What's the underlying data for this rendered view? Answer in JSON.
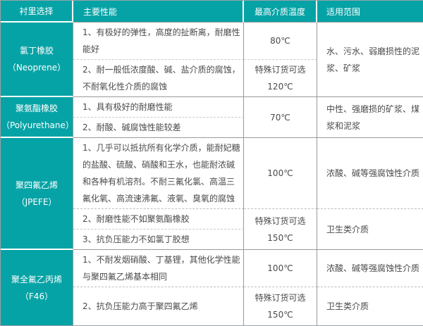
{
  "colors": {
    "teal": "#06a3a6",
    "border_gray": "#999999",
    "dash_gray": "#c9c9c9",
    "body_text": "#4a4a4a"
  },
  "table": {
    "headers": {
      "lining": "衬里选择",
      "performance": "主要性能",
      "max_temp": "最高介质温度",
      "range": "适用范围"
    },
    "groups": [
      {
        "lining": "氯丁橡胶\n（Neoprene）",
        "items": [
          {
            "perf": "1、有极好的弹性，高度的扯断离，耐磨性能好",
            "temp": "80℃"
          },
          {
            "perf": "2、耐一般低浓度酸、碱、盐介质的腐蚀，不耐氧化性介质的腐蚀",
            "temp": "特殊订货可选\n120℃"
          }
        ],
        "range": "水、污水、弱磨损性的泥浆、矿浆"
      },
      {
        "lining": "聚氨酯橡胶\n（Polyurethane）",
        "items": [
          {
            "perf": "1、具有极好的耐磨性能"
          },
          {
            "perf": "2、耐酸、碱腐蚀性能较差"
          }
        ],
        "temp": "70℃",
        "range": "中性、强磨损的矿浆、煤浆和泥浆"
      },
      {
        "lining": "聚四氟乙烯\n（JPEFE）",
        "items": [
          {
            "perf": "1、几乎可以抵抗所有化学介质，能耐妃糖的盐酸、硫酸、硝酸和王水，也能耐浓碱和各种有机溶剂。不耐三氟化氯、高温三氟化氧、高流速沸氟、液氧、臭氧的腐蚀",
            "temp": "100℃",
            "range": "浓酸、碱等强腐蚀性介质"
          },
          {
            "perf": "2、耐磨性能不如聚氨酯橡胶"
          },
          {
            "perf": "3、抗负压能力不如氯丁胶想"
          }
        ],
        "shared_temp": "特殊订货可选\n150℃",
        "shared_range": "卫生类介质"
      },
      {
        "lining": "聚全氟乙丙烯\n（F46）",
        "items": [
          {
            "perf": "1、不耐发烟硝酸、丁基锂，其他化学性能与聚四氟乙烯基本相同",
            "temp": "100℃",
            "range": "浓酸、碱等强腐蚀性介质"
          },
          {
            "perf": "2、抗负压能力高于聚四氟乙烯",
            "temp": "特殊订货可选\n150℃",
            "range": "卫生类介质"
          }
        ]
      }
    ]
  }
}
